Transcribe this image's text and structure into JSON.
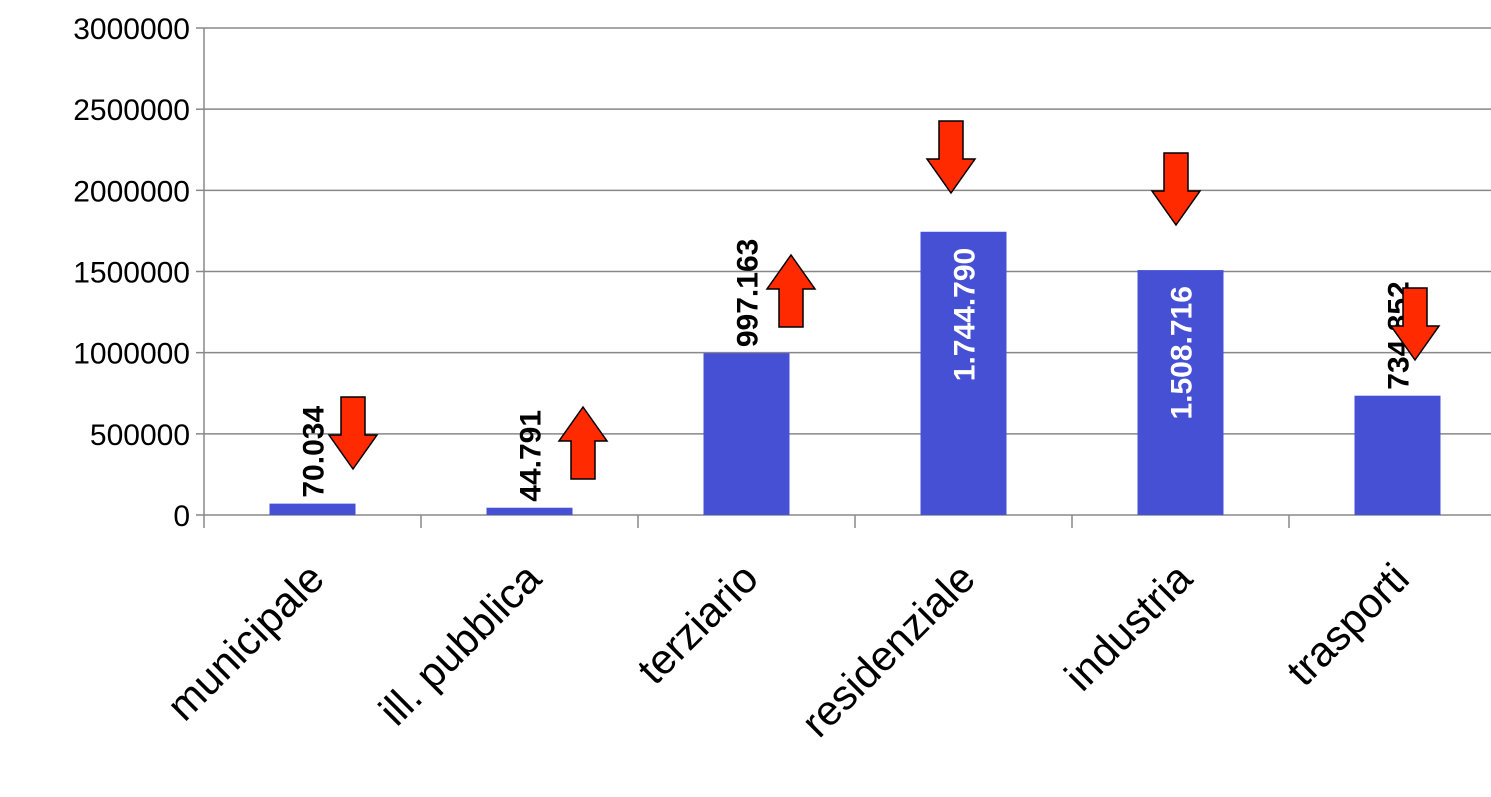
{
  "chart_data": {
    "type": "bar",
    "title": "",
    "xlabel": "",
    "ylabel": "",
    "categories": [
      "municipale",
      "ill. pubblica",
      "terziario",
      "residenziale",
      "industria",
      "trasporti"
    ],
    "values": [
      70034,
      44791,
      997163,
      1744790,
      1508716,
      734852
    ],
    "data_labels": [
      "70.034",
      "44.791",
      "997.163",
      "1.744.790",
      "1.508.716",
      "734.852"
    ],
    "label_inside_bar": [
      false,
      false,
      false,
      true,
      true,
      false
    ],
    "trend_arrows": [
      "down",
      "up",
      "up",
      "down",
      "down",
      "down"
    ],
    "ylim": [
      0,
      3000000
    ],
    "yticks": [
      0,
      500000,
      1000000,
      1500000,
      2000000,
      2500000,
      3000000
    ],
    "ytick_labels": [
      "0",
      "500000",
      "1000000",
      "1500000",
      "2000000",
      "2500000",
      "3000000"
    ],
    "grid": true,
    "legend": "none",
    "colors": {
      "bar": "#4650d5",
      "arrow_fill": "#ff2a00",
      "arrow_stroke": "#000000",
      "grid": "#888888",
      "label_outside": "#000000",
      "label_inside": "#ffffff"
    }
  }
}
